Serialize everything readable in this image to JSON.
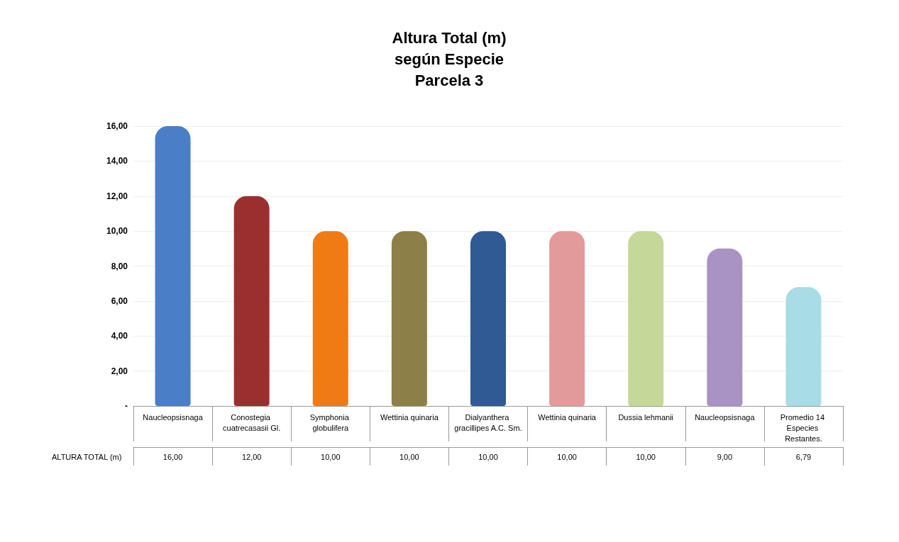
{
  "chart_data": {
    "type": "bar",
    "title": "Altura Total (m)\nsegún Especie\nParcela 3",
    "categories": [
      "Naucleopsisnaga",
      "Conostegia cuatrecasasii Gl.",
      "Symphonia globulifera",
      "Wettinia quinaria",
      "Dialyanthera gracillipes A.C. Sm.",
      "Wettinia quinaria",
      "Dussia lehmanii",
      "Naucleopsisnaga",
      "Promedio 14 Especies Restantes."
    ],
    "series": [
      {
        "name": "ALTURA TOTAL (m)",
        "values": [
          16,
          12,
          10,
          10,
          10,
          10,
          10,
          9,
          6.79
        ],
        "colors": [
          "#4a7fc8",
          "#9b2f2f",
          "#f07b14",
          "#8c7f48",
          "#2f5a93",
          "#e39a9a",
          "#c5d89a",
          "#a992c4",
          "#a8dce6"
        ],
        "value_labels": [
          "16,00",
          "12,00",
          "10,00",
          "10,00",
          "10,00",
          "10,00",
          "10,00",
          "9,00",
          "6,79"
        ]
      }
    ],
    "ylim": [
      0,
      16
    ],
    "yticks": [
      {
        "value": 0,
        "label": "-"
      },
      {
        "value": 2,
        "label": "2,00"
      },
      {
        "value": 4,
        "label": "4,00"
      },
      {
        "value": 6,
        "label": "6,00"
      },
      {
        "value": 8,
        "label": "8,00"
      },
      {
        "value": 10,
        "label": "10,00"
      },
      {
        "value": 12,
        "label": "12,00"
      },
      {
        "value": 14,
        "label": "14,00"
      },
      {
        "value": 16,
        "label": "16,00"
      }
    ],
    "grid": "y"
  }
}
